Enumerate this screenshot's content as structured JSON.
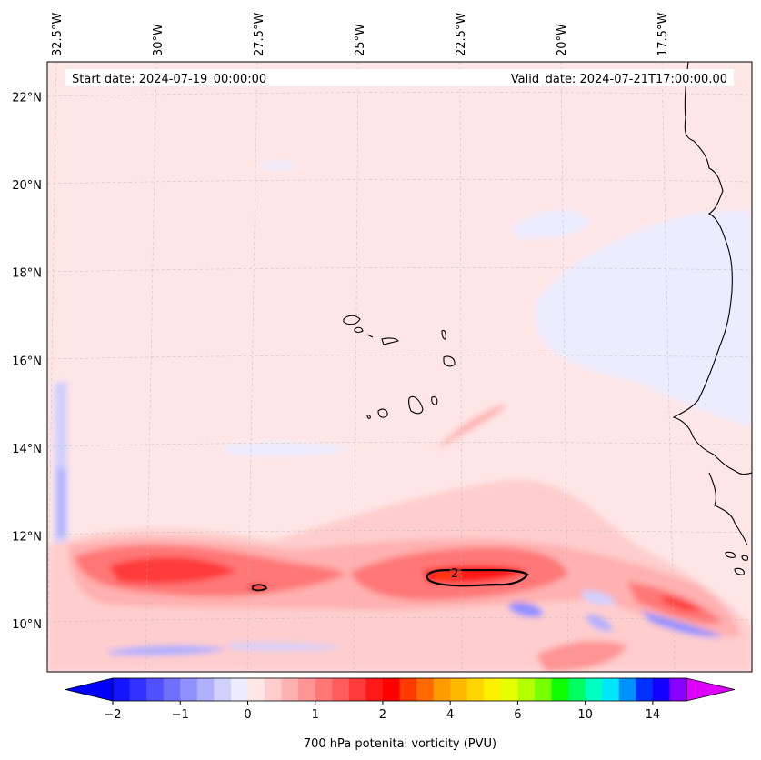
{
  "chart_data": {
    "type": "heatmap",
    "variable_label": "700 hPa potenital vorticity (PVU)",
    "start_date_text": "Start date: 2024-07-19_00:00:00",
    "valid_date_text": "Valid_date: 2024-07-21T17:00:00.00",
    "units": "PVU",
    "projection": "Lambert conformal",
    "lon_range": [
      -33.0,
      -15.2
    ],
    "lat_range": [
      8.9,
      22.8
    ],
    "lon_ticks": [
      -32.5,
      -30,
      -27.5,
      -25,
      -22.5,
      -20,
      -17.5
    ],
    "lon_tick_labels": [
      "32.5°W",
      "30°W",
      "27.5°W",
      "25°W",
      "22.5°W",
      "20°W",
      "17.5°W"
    ],
    "lat_ticks": [
      10,
      12,
      14,
      16,
      18,
      20,
      22
    ],
    "lat_tick_labels": [
      "10°N",
      "12°N",
      "14°N",
      "16°N",
      "18°N",
      "20°N",
      "22°N"
    ],
    "gridlines": true,
    "colorbar": {
      "levels": [
        -2.0,
        -1.75,
        -1.5,
        -1.25,
        -1.0,
        -0.75,
        -0.5,
        -0.25,
        0,
        0.25,
        0.5,
        0.75,
        1.0,
        1.25,
        1.5,
        1.75,
        2,
        2.5,
        3,
        3.5,
        4,
        4.5,
        5,
        5.5,
        6,
        7,
        8,
        9,
        10,
        11,
        12,
        13,
        14,
        15
      ],
      "tick_values": [
        -2,
        -1,
        0,
        1,
        2,
        4,
        6,
        10,
        14
      ],
      "tick_labels": [
        "−2",
        "−1",
        "0",
        "1",
        "2",
        "4",
        "6",
        "10",
        "14"
      ],
      "colors": [
        "#1414ff",
        "#3232ff",
        "#5050ff",
        "#7070ff",
        "#9090ff",
        "#b0b0ff",
        "#d0d0ff",
        "#ececff",
        "#ffe6e6",
        "#ffcdcd",
        "#ffb0b0",
        "#ff9494",
        "#ff7777",
        "#ff5c5c",
        "#ff3a3a",
        "#ff1818",
        "#ff0000",
        "#ff3a00",
        "#ff6a00",
        "#ff9a00",
        "#ffb800",
        "#ffd600",
        "#fff000",
        "#e6ff00",
        "#b4ff00",
        "#78ff00",
        "#10ff00",
        "#00ff60",
        "#00ffc0",
        "#00e6ff",
        "#0090ff",
        "#0030ff",
        "#1400ff",
        "#8800ff"
      ],
      "under_color": "#0000ff",
      "over_color": "#dd00ff",
      "extend": "both"
    },
    "contours": [
      {
        "level": 2,
        "label": "2",
        "color": "#000000"
      }
    ],
    "field_features": [
      {
        "name": "background",
        "pv_approx": 0.1
      },
      {
        "name": "west-band",
        "pv_approx": 1.3
      },
      {
        "name": "west-core",
        "pv_approx": 2.5
      },
      {
        "name": "central-band",
        "pv_approx": 1.3
      },
      {
        "name": "central-core",
        "pv_approx": 2.6
      },
      {
        "name": "east-band",
        "pv_approx": 1.0
      },
      {
        "name": "northeast-negative",
        "pv_approx": -0.1
      },
      {
        "name": "south-negative",
        "pv_approx": -0.8
      }
    ]
  }
}
